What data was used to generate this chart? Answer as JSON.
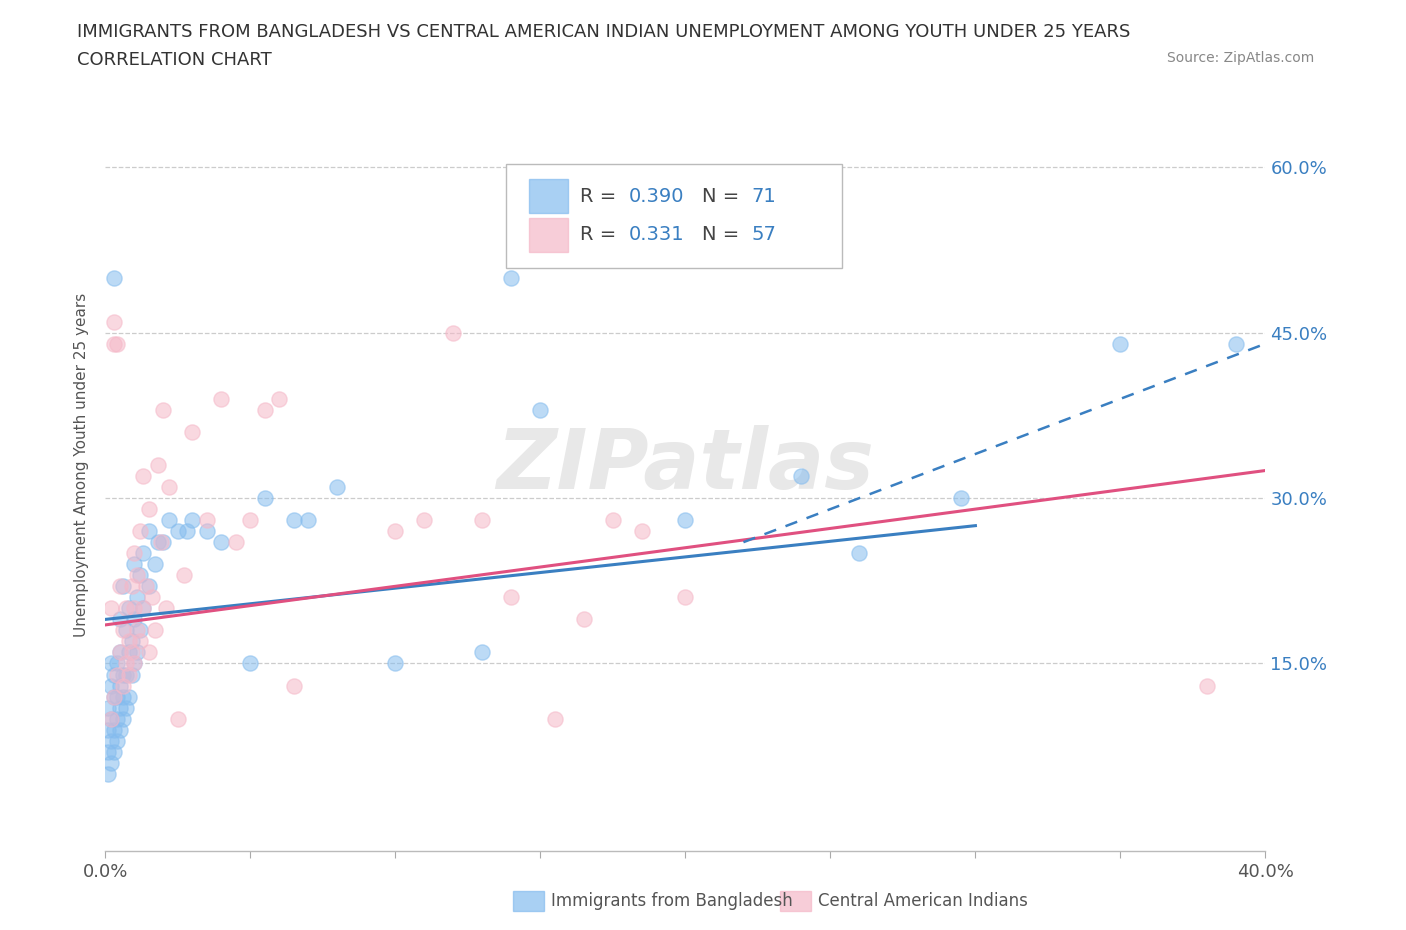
{
  "title_line1": "IMMIGRANTS FROM BANGLADESH VS CENTRAL AMERICAN INDIAN UNEMPLOYMENT AMONG YOUTH UNDER 25 YEARS",
  "title_line2": "CORRELATION CHART",
  "source_text": "Source: ZipAtlas.com",
  "ylabel": "Unemployment Among Youth under 25 years",
  "xlim": [
    0.0,
    0.4
  ],
  "ylim": [
    -0.02,
    0.68
  ],
  "ytick_positions": [
    0.15,
    0.3,
    0.45,
    0.6
  ],
  "ytick_labels": [
    "15.0%",
    "30.0%",
    "45.0%",
    "60.0%"
  ],
  "blue_scatter": [
    [
      0.001,
      0.05
    ],
    [
      0.001,
      0.07
    ],
    [
      0.001,
      0.09
    ],
    [
      0.001,
      0.11
    ],
    [
      0.002,
      0.06
    ],
    [
      0.002,
      0.08
    ],
    [
      0.002,
      0.1
    ],
    [
      0.002,
      0.13
    ],
    [
      0.002,
      0.15
    ],
    [
      0.003,
      0.07
    ],
    [
      0.003,
      0.09
    ],
    [
      0.003,
      0.12
    ],
    [
      0.003,
      0.14
    ],
    [
      0.003,
      0.5
    ],
    [
      0.004,
      0.08
    ],
    [
      0.004,
      0.1
    ],
    [
      0.004,
      0.12
    ],
    [
      0.004,
      0.15
    ],
    [
      0.005,
      0.09
    ],
    [
      0.005,
      0.11
    ],
    [
      0.005,
      0.13
    ],
    [
      0.005,
      0.16
    ],
    [
      0.005,
      0.19
    ],
    [
      0.006,
      0.1
    ],
    [
      0.006,
      0.12
    ],
    [
      0.006,
      0.14
    ],
    [
      0.006,
      0.22
    ],
    [
      0.007,
      0.11
    ],
    [
      0.007,
      0.14
    ],
    [
      0.007,
      0.18
    ],
    [
      0.008,
      0.12
    ],
    [
      0.008,
      0.16
    ],
    [
      0.008,
      0.2
    ],
    [
      0.009,
      0.14
    ],
    [
      0.009,
      0.17
    ],
    [
      0.01,
      0.15
    ],
    [
      0.01,
      0.19
    ],
    [
      0.01,
      0.24
    ],
    [
      0.011,
      0.16
    ],
    [
      0.011,
      0.21
    ],
    [
      0.012,
      0.18
    ],
    [
      0.012,
      0.23
    ],
    [
      0.013,
      0.2
    ],
    [
      0.013,
      0.25
    ],
    [
      0.015,
      0.22
    ],
    [
      0.015,
      0.27
    ],
    [
      0.017,
      0.24
    ],
    [
      0.018,
      0.26
    ],
    [
      0.02,
      0.26
    ],
    [
      0.022,
      0.28
    ],
    [
      0.025,
      0.27
    ],
    [
      0.028,
      0.27
    ],
    [
      0.03,
      0.28
    ],
    [
      0.035,
      0.27
    ],
    [
      0.04,
      0.26
    ],
    [
      0.05,
      0.15
    ],
    [
      0.055,
      0.3
    ],
    [
      0.065,
      0.28
    ],
    [
      0.07,
      0.28
    ],
    [
      0.08,
      0.31
    ],
    [
      0.1,
      0.15
    ],
    [
      0.13,
      0.16
    ],
    [
      0.14,
      0.5
    ],
    [
      0.15,
      0.38
    ],
    [
      0.2,
      0.28
    ],
    [
      0.24,
      0.32
    ],
    [
      0.26,
      0.25
    ],
    [
      0.295,
      0.3
    ],
    [
      0.35,
      0.44
    ],
    [
      0.39,
      0.44
    ]
  ],
  "pink_scatter": [
    [
      0.002,
      0.1
    ],
    [
      0.002,
      0.2
    ],
    [
      0.003,
      0.12
    ],
    [
      0.003,
      0.44
    ],
    [
      0.003,
      0.46
    ],
    [
      0.004,
      0.14
    ],
    [
      0.004,
      0.44
    ],
    [
      0.005,
      0.16
    ],
    [
      0.005,
      0.22
    ],
    [
      0.006,
      0.13
    ],
    [
      0.006,
      0.18
    ],
    [
      0.007,
      0.15
    ],
    [
      0.007,
      0.2
    ],
    [
      0.008,
      0.14
    ],
    [
      0.008,
      0.17
    ],
    [
      0.009,
      0.16
    ],
    [
      0.009,
      0.22
    ],
    [
      0.01,
      0.15
    ],
    [
      0.01,
      0.2
    ],
    [
      0.01,
      0.25
    ],
    [
      0.011,
      0.18
    ],
    [
      0.011,
      0.23
    ],
    [
      0.012,
      0.17
    ],
    [
      0.012,
      0.27
    ],
    [
      0.013,
      0.2
    ],
    [
      0.013,
      0.32
    ],
    [
      0.014,
      0.22
    ],
    [
      0.015,
      0.16
    ],
    [
      0.015,
      0.29
    ],
    [
      0.016,
      0.21
    ],
    [
      0.017,
      0.18
    ],
    [
      0.018,
      0.33
    ],
    [
      0.019,
      0.26
    ],
    [
      0.02,
      0.38
    ],
    [
      0.021,
      0.2
    ],
    [
      0.022,
      0.31
    ],
    [
      0.025,
      0.1
    ],
    [
      0.027,
      0.23
    ],
    [
      0.03,
      0.36
    ],
    [
      0.035,
      0.28
    ],
    [
      0.04,
      0.39
    ],
    [
      0.045,
      0.26
    ],
    [
      0.05,
      0.28
    ],
    [
      0.055,
      0.38
    ],
    [
      0.06,
      0.39
    ],
    [
      0.065,
      0.13
    ],
    [
      0.1,
      0.27
    ],
    [
      0.11,
      0.28
    ],
    [
      0.12,
      0.45
    ],
    [
      0.13,
      0.28
    ],
    [
      0.14,
      0.21
    ],
    [
      0.155,
      0.1
    ],
    [
      0.165,
      0.19
    ],
    [
      0.175,
      0.28
    ],
    [
      0.185,
      0.27
    ],
    [
      0.2,
      0.21
    ],
    [
      0.38,
      0.13
    ]
  ],
  "blue_line": {
    "x0": 0.0,
    "y0": 0.19,
    "x1": 0.3,
    "y1": 0.275
  },
  "pink_line": {
    "x0": 0.0,
    "y0": 0.185,
    "x1": 0.4,
    "y1": 0.325
  },
  "blue_dashed_line": {
    "x0": 0.22,
    "y0": 0.26,
    "x1": 0.4,
    "y1": 0.44
  },
  "blue_color": "#85bcee",
  "pink_color": "#f5b8c8",
  "blue_line_color": "#3a7fc1",
  "pink_line_color": "#e05080",
  "grid_color": "#cccccc",
  "background_color": "#ffffff",
  "watermark": "ZIPatlas",
  "title_fontsize": 13,
  "axis_label_fontsize": 11,
  "tick_fontsize": 13,
  "legend_text_color": "#3a7fc1",
  "legend_r_label_color": "#555555"
}
